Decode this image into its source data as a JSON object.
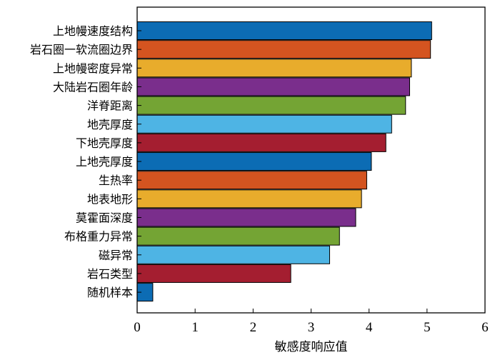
{
  "chart_data": {
    "type": "bar",
    "orientation": "horizontal",
    "categories": [
      "上地幔速度结构",
      "岩石圈一软流圈边界",
      "上地幔密度异常",
      "大陆岩石圈年龄",
      "洋脊距离",
      "地壳厚度",
      "下地壳厚度",
      "上地壳厚度",
      "生热率",
      "地表地形",
      "莫霍面深度",
      "布格重力异常",
      "磁异常",
      "岩石类型",
      "随机样本"
    ],
    "values": [
      5.08,
      5.06,
      4.73,
      4.7,
      4.63,
      4.39,
      4.29,
      4.04,
      3.96,
      3.87,
      3.77,
      3.49,
      3.32,
      2.65,
      0.27
    ],
    "colors": [
      "#0c6cb4",
      "#d45420",
      "#e8ac2c",
      "#7a2e8c",
      "#74a434",
      "#4eb4e4",
      "#a41e30"
    ],
    "xlabel": "敏感度响应值",
    "ylabel": "",
    "title": "",
    "xlim": [
      0,
      6
    ],
    "xticks": [
      "0",
      "1",
      "2",
      "3",
      "4",
      "5",
      "6"
    ],
    "grid": false,
    "legend": "none"
  }
}
